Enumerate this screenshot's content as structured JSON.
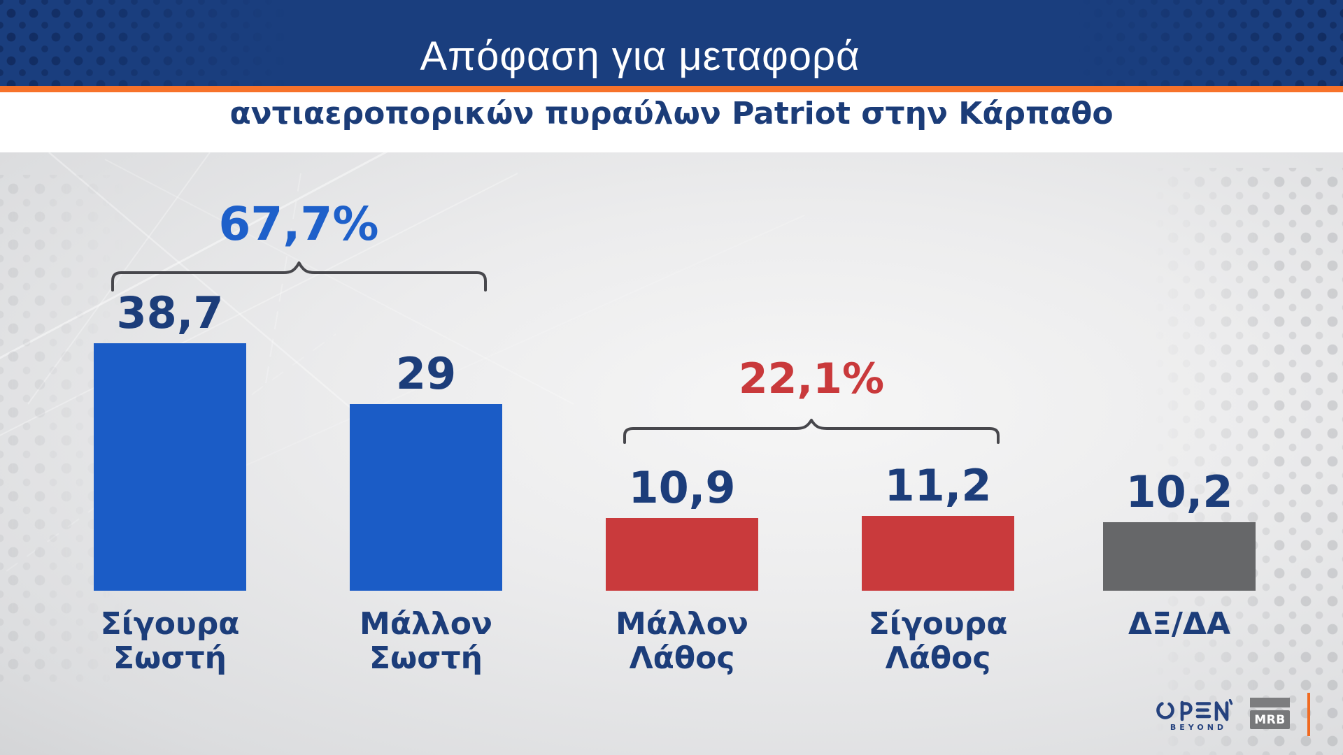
{
  "header": {
    "title": "Απόφαση για μεταφορά",
    "subtitle": "αντιαεροπορικών πυραύλων Patriot στην Κάρπαθο"
  },
  "chart_data": {
    "type": "bar",
    "title": "Απόφαση για μεταφορά αντιαεροπορικών πυραύλων Patriot στην Κάρπαθο",
    "categories": [
      "Σίγουρα Σωστή",
      "Μάλλον Σωστή",
      "Μάλλον Λάθος",
      "Σίγουρα Λάθος",
      "ΔΞ/ΔΑ"
    ],
    "values": [
      38.7,
      29,
      10.9,
      11.2,
      10.2
    ],
    "value_labels": [
      "38,7",
      "29",
      "10,9",
      "11,2",
      "10,2"
    ],
    "bar_colors": [
      "#1b5cc6",
      "#1b5cc6",
      "#c93a3c",
      "#c93a3c",
      "#666769"
    ],
    "groups": [
      {
        "label": "67,7%",
        "color": "#1e60ca",
        "sum_of": [
          "Σίγουρα Σωστή",
          "Μάλλον Σωστή"
        ]
      },
      {
        "label": "22,1%",
        "color": "#c9393b",
        "sum_of": [
          "Μάλλον Λάθος",
          "Σίγουρα Λάθος"
        ]
      }
    ],
    "ylabel": "",
    "xlabel": "",
    "ylim": [
      0,
      40
    ],
    "grid": false,
    "legend": null
  },
  "footer": {
    "open_label": "OPEN",
    "beyond_label": "BEYOND",
    "mrb_label": "MRB"
  },
  "colors": {
    "header_bg": "#1a3e7e",
    "accent_orange": "#f7722a",
    "text_navy": "#1c3d7a",
    "blue_bar": "#1b5cc6",
    "red_bar": "#c93a3c",
    "gray_bar": "#666769",
    "brace": "#47474c"
  }
}
